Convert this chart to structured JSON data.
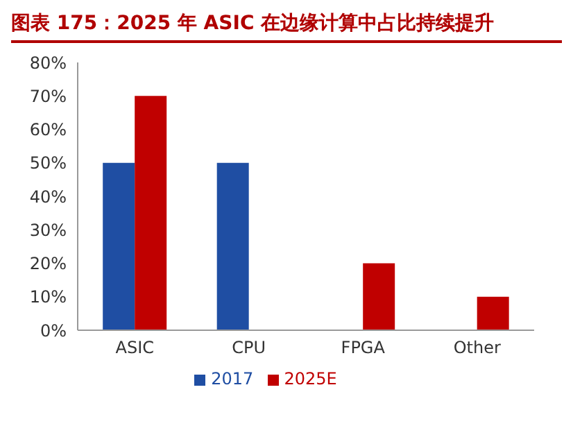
{
  "chart_data": {
    "type": "bar",
    "title": "图表 175：2025 年 ASIC 在边缘计算中占比持续提升",
    "categories": [
      "ASIC",
      "CPU",
      "FPGA",
      "Other"
    ],
    "series": [
      {
        "name": "2017",
        "color": "#1f4ea3",
        "values": [
          50,
          50,
          0,
          0
        ]
      },
      {
        "name": "2025E",
        "color": "#c00000",
        "values": [
          70,
          0,
          20,
          10
        ]
      }
    ],
    "ylim": [
      0,
      80
    ],
    "yticks": [
      {
        "value": 0,
        "label": "0%"
      },
      {
        "value": 10,
        "label": "10%"
      },
      {
        "value": 20,
        "label": "20%"
      },
      {
        "value": 30,
        "label": "30%"
      },
      {
        "value": 40,
        "label": "40%"
      },
      {
        "value": 50,
        "label": "50%"
      },
      {
        "value": 60,
        "label": "60%"
      },
      {
        "value": 70,
        "label": "70%"
      },
      {
        "value": 80,
        "label": "80%"
      }
    ],
    "grid": false,
    "legend": "bottom"
  }
}
